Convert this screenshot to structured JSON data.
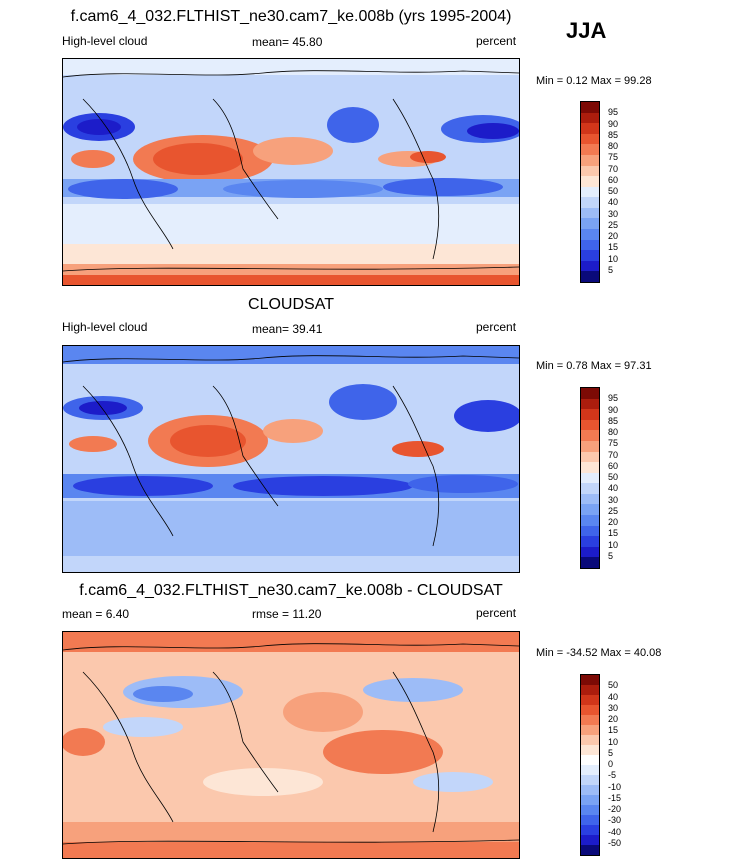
{
  "season": "JJA",
  "palette_abs": [
    "#0a0a7a",
    "#1c1cc9",
    "#2a3fe0",
    "#3f64ea",
    "#5a86f0",
    "#7aa3f4",
    "#9dbcf7",
    "#c2d6fa",
    "#e4eefd",
    "#fde6d6",
    "#fbc8ad",
    "#f7a17c",
    "#f27a52",
    "#e8552f",
    "#d1361a",
    "#ac1d0d",
    "#7c0a05"
  ],
  "palette_diff": [
    "#0a0a7a",
    "#1c1cc9",
    "#2a3fe0",
    "#3f64ea",
    "#5a86f0",
    "#7aa3f4",
    "#9dbcf7",
    "#c2d6fa",
    "#e4eefd",
    "#ffffff",
    "#fde6d6",
    "#fbc8ad",
    "#f7a17c",
    "#f27a52",
    "#e8552f",
    "#d1361a",
    "#ac1d0d",
    "#7c0a05"
  ],
  "panels": [
    {
      "id": "model",
      "title": "f.cam6_4_032.FLTHIST_ne30.cam7_ke.008b (yrs 1995-2004)",
      "left_label": "High-level cloud",
      "center_label": "mean=  45.80",
      "right_label": "percent",
      "minmax": "Min =   0.12 Max =  99.28",
      "levels": [
        "95",
        "90",
        "85",
        "80",
        "75",
        "70",
        "60",
        "50",
        "40",
        "30",
        "25",
        "20",
        "15",
        "10",
        "5"
      ]
    },
    {
      "id": "obs",
      "title": "CLOUDSAT",
      "left_label": "High-level cloud",
      "center_label": "mean=  39.41",
      "right_label": "percent",
      "minmax": "Min =   0.78 Max =  97.31",
      "levels": [
        "95",
        "90",
        "85",
        "80",
        "75",
        "70",
        "60",
        "50",
        "40",
        "30",
        "25",
        "20",
        "15",
        "10",
        "5"
      ]
    },
    {
      "id": "diff",
      "title": "f.cam6_4_032.FLTHIST_ne30.cam7_ke.008b - CLOUDSAT",
      "left_label": "mean =   6.40",
      "center_label": "rmse =  11.20",
      "right_label": "percent",
      "minmax": "Min = -34.52 Max =  40.08",
      "levels": [
        "50",
        "40",
        "30",
        "20",
        "15",
        "10",
        "5",
        "0",
        "-5",
        "-10",
        "-15",
        "-20",
        "-30",
        "-40",
        "-50"
      ]
    }
  ]
}
